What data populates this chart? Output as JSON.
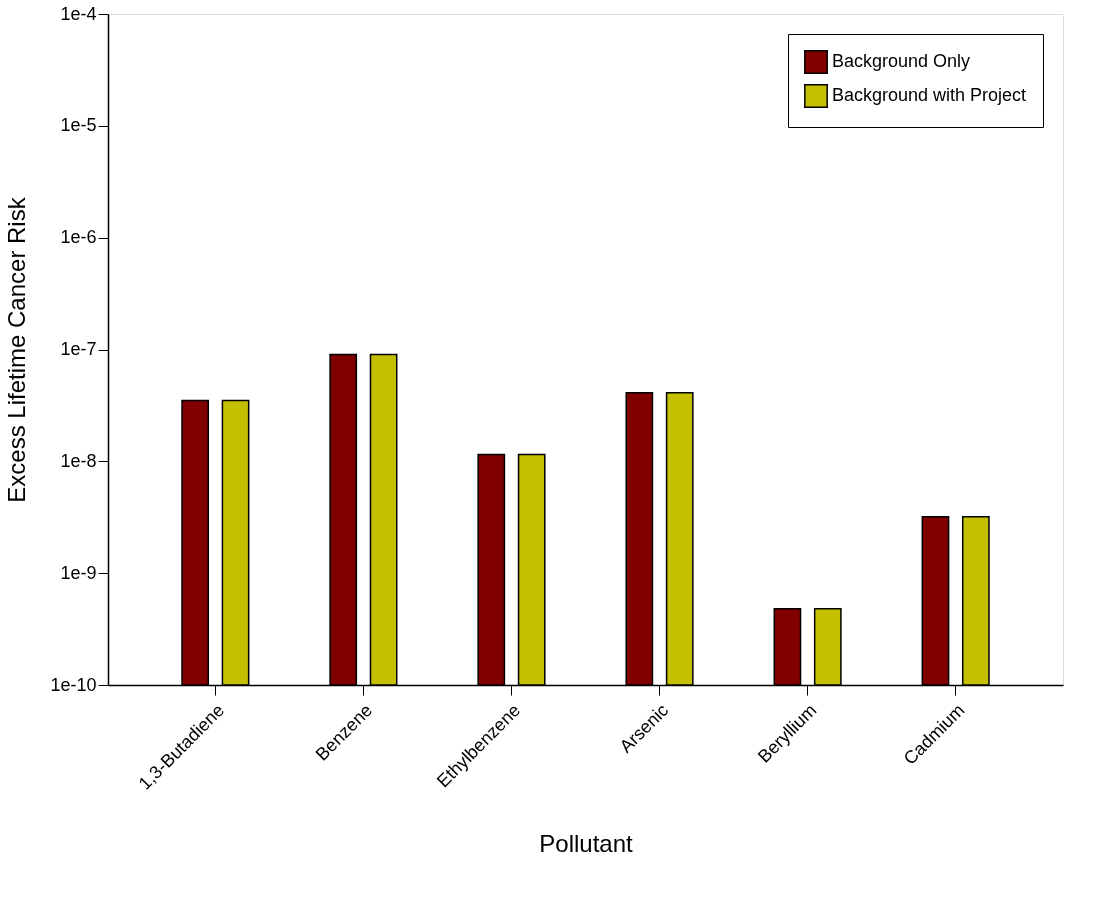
{
  "chart_data": {
    "type": "bar",
    "xlabel": "Pollutant",
    "ylabel": "Excess Lifetime Cancer Risk",
    "categories": [
      "1,3-Butadiene",
      "Benzene",
      "Ethylbenzene",
      "Arsenic",
      "Beryllium",
      "Cadmium"
    ],
    "series": [
      {
        "name": "Background Only",
        "color": "#800000",
        "values": [
          3.5e-08,
          9e-08,
          1.15e-08,
          4.1e-08,
          4.8e-10,
          3.2e-09
        ]
      },
      {
        "name": "Background with Project",
        "color": "#c4c000",
        "values": [
          3.5e-08,
          9e-08,
          1.15e-08,
          4.1e-08,
          4.8e-10,
          3.2e-09
        ]
      }
    ],
    "log": true,
    "ylim": [
      1e-10,
      0.0001
    ],
    "yticks": [
      {
        "value": 1e-10,
        "label": "1e-10"
      },
      {
        "value": 1e-09,
        "label": "1e-9"
      },
      {
        "value": 1e-08,
        "label": "1e-8"
      },
      {
        "value": 1e-07,
        "label": "1e-7"
      },
      {
        "value": 1e-06,
        "label": "1e-6"
      },
      {
        "value": 1e-05,
        "label": "1e-5"
      },
      {
        "value": 0.0001,
        "label": "1e-4"
      }
    ],
    "legend": "top right",
    "grid": false
  }
}
